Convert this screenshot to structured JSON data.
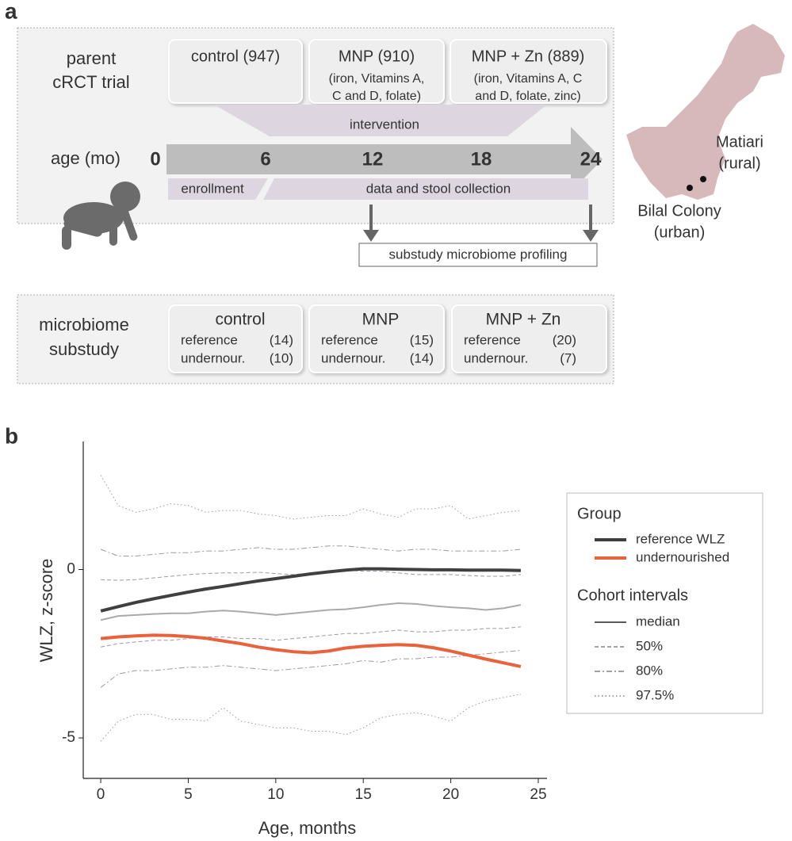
{
  "panel_a": {
    "label": "a",
    "parent_title": [
      "parent",
      "cRCT trial"
    ],
    "arms": [
      {
        "name": "control (947)",
        "details": []
      },
      {
        "name": "MNP (910)",
        "details": [
          "(iron, Vitamins A,",
          "C and D, folate)"
        ]
      },
      {
        "name": "MNP + Zn (889)",
        "details": [
          "(iron, Vitamins A, C",
          "and D, folate, zinc)"
        ]
      }
    ],
    "intervention": "intervention",
    "age_label": "age (mo)",
    "ages": [
      0,
      6,
      12,
      18,
      24
    ],
    "enrollment": "enrollment",
    "collection": "data and stool collection",
    "profiling": "substudy microbiome profiling",
    "sites": [
      {
        "lines": [
          "Matiari",
          "(rural)"
        ]
      },
      {
        "lines": [
          "Bilal Colony",
          "(urban)"
        ]
      }
    ],
    "substudy_title": [
      "microbiome",
      "substudy"
    ],
    "groups": [
      {
        "name": "control",
        "rows": [
          [
            "reference",
            "(14)"
          ],
          [
            "undernour.",
            "(10)"
          ]
        ]
      },
      {
        "name": "MNP",
        "rows": [
          [
            "reference",
            "(15)"
          ],
          [
            "undernour.",
            "(14)"
          ]
        ]
      },
      {
        "name": "MNP + Zn",
        "rows": [
          [
            "reference",
            "(20)"
          ],
          [
            "undernour.",
            "(7)"
          ]
        ]
      }
    ]
  },
  "chart_data": {
    "type": "line",
    "panel_label": "b",
    "x_label": "Age, months",
    "y_label": "WLZ, z-score",
    "x": [
      0,
      1,
      2,
      3,
      4,
      5,
      6,
      7,
      8,
      9,
      10,
      11,
      12,
      13,
      14,
      15,
      16,
      17,
      18,
      19,
      20,
      21,
      22,
      23,
      24
    ],
    "xlim": [
      -1,
      25.5
    ],
    "xticks": [
      0,
      5,
      10,
      15,
      20,
      25
    ],
    "ylim": [
      -6.2,
      3.8
    ],
    "yticks": [
      -5,
      0
    ],
    "legend_title": "Group",
    "series": [
      {
        "name": "reference WLZ",
        "color": "#404040",
        "values": [
          -1.23,
          -1.1,
          -0.98,
          -0.87,
          -0.77,
          -0.67,
          -0.58,
          -0.5,
          -0.42,
          -0.34,
          -0.27,
          -0.2,
          -0.13,
          -0.07,
          -0.02,
          0.02,
          0.02,
          0.01,
          0,
          -0.01,
          -0.01,
          -0.02,
          -0.02,
          -0.02,
          -0.03
        ]
      },
      {
        "name": "undernourished",
        "color": "#e8623c",
        "values": [
          -2.05,
          -2.0,
          -1.97,
          -1.95,
          -1.96,
          -1.99,
          -2.04,
          -2.12,
          -2.2,
          -2.3,
          -2.38,
          -2.44,
          -2.47,
          -2.42,
          -2.33,
          -2.28,
          -2.25,
          -2.23,
          -2.25,
          -2.32,
          -2.42,
          -2.54,
          -2.66,
          -2.77,
          -2.88
        ]
      }
    ],
    "intervals_title": "Cohort intervals",
    "median": {
      "name": "median",
      "color": "#aaaaaa",
      "values": [
        -1.5,
        -1.38,
        -1.35,
        -1.32,
        -1.3,
        -1.3,
        -1.25,
        -1.22,
        -1.25,
        -1.3,
        -1.35,
        -1.3,
        -1.25,
        -1.2,
        -1.18,
        -1.12,
        -1.05,
        -1.0,
        -1.02,
        -1.08,
        -1.12,
        -1.15,
        -1.2,
        -1.15,
        -1.05
      ]
    },
    "intervals": [
      {
        "name": "50%",
        "style": "dashed",
        "color": "#9a9aa8",
        "upper": [
          -0.3,
          -0.32,
          -0.3,
          -0.25,
          -0.2,
          -0.15,
          -0.12,
          -0.1,
          -0.1,
          -0.08,
          -0.12,
          -0.15,
          -0.1,
          -0.05,
          -0.02,
          -0.05,
          -0.05,
          -0.1,
          -0.15,
          -0.15,
          -0.15,
          -0.18,
          -0.2,
          -0.2,
          -0.15
        ],
        "lower": [
          -2.3,
          -2.2,
          -2.15,
          -2.1,
          -2.1,
          -2.05,
          -2.0,
          -2.0,
          -2.05,
          -2.05,
          -2.1,
          -2.05,
          -2.0,
          -1.95,
          -1.9,
          -1.9,
          -1.85,
          -1.8,
          -1.85,
          -1.85,
          -1.8,
          -1.8,
          -1.75,
          -1.75,
          -1.7
        ]
      },
      {
        "name": "80%",
        "style": "dashdot",
        "color": "#9a9aa8",
        "upper": [
          0.6,
          0.4,
          0.4,
          0.45,
          0.5,
          0.5,
          0.55,
          0.55,
          0.6,
          0.65,
          0.6,
          0.6,
          0.65,
          0.7,
          0.7,
          0.65,
          0.6,
          0.55,
          0.6,
          0.6,
          0.55,
          0.55,
          0.55,
          0.55,
          0.6
        ],
        "lower": [
          -3.5,
          -3.1,
          -3.0,
          -3.0,
          -2.95,
          -2.9,
          -2.9,
          -2.85,
          -2.9,
          -2.95,
          -3.0,
          -2.95,
          -2.9,
          -2.85,
          -2.8,
          -2.7,
          -2.75,
          -2.65,
          -2.65,
          -2.6,
          -2.6,
          -2.55,
          -2.5,
          -2.45,
          -2.4
        ]
      },
      {
        "name": "97.5%",
        "style": "dotted",
        "color": "#9a9aa8",
        "upper": [
          2.8,
          1.9,
          1.7,
          1.8,
          1.95,
          1.9,
          1.7,
          1.75,
          1.75,
          1.65,
          1.6,
          1.5,
          1.55,
          1.6,
          1.6,
          1.8,
          1.65,
          1.55,
          1.8,
          1.8,
          1.9,
          1.5,
          1.6,
          1.7,
          1.75
        ],
        "lower": [
          -5.1,
          -4.5,
          -4.3,
          -4.3,
          -4.45,
          -4.45,
          -4.5,
          -4.1,
          -4.5,
          -4.6,
          -4.7,
          -4.7,
          -4.8,
          -4.8,
          -4.9,
          -4.7,
          -4.4,
          -4.3,
          -4.25,
          -4.35,
          -4.5,
          -4.1,
          -3.9,
          -3.8,
          -3.7
        ]
      }
    ]
  }
}
